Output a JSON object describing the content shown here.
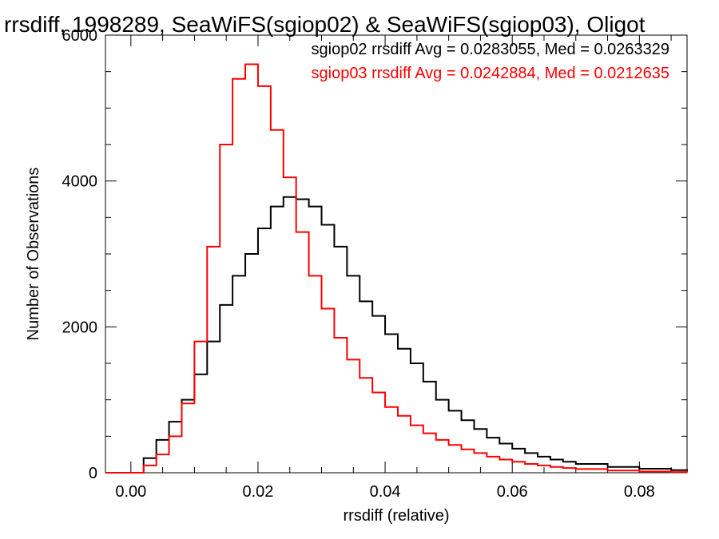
{
  "chart_data": {
    "type": "line",
    "title": "rrsdiff, 1998289, SeaWiFS(sgiop02) & SeaWiFS(sgiop03), Oligot",
    "xlabel": "rrsdiff (relative)",
    "ylabel": "Number of Observations",
    "xlim": [
      -0.004,
      0.0875
    ],
    "ylim": [
      0,
      6000
    ],
    "x_ticks": [
      0.0,
      0.02,
      0.04,
      0.06,
      0.08
    ],
    "x_tick_labels": [
      "0.00",
      "0.02",
      "0.04",
      "0.06",
      "0.08"
    ],
    "y_ticks": [
      0,
      2000,
      4000,
      6000
    ],
    "y_tick_labels": [
      "0",
      "2000",
      "4000",
      "6000"
    ],
    "grid": false,
    "legend_placement": "top-right",
    "series": [
      {
        "legend_text": "sgiop02 rrsdiff Avg = 0.0283055, Med = 0.0263329",
        "color": "#000000",
        "points": [
          [
            -0.004,
            0
          ],
          [
            0.0,
            0
          ],
          [
            0.002,
            200
          ],
          [
            0.004,
            450
          ],
          [
            0.006,
            700
          ],
          [
            0.008,
            1000
          ],
          [
            0.01,
            1350
          ],
          [
            0.012,
            1800
          ],
          [
            0.014,
            2300
          ],
          [
            0.016,
            2700
          ],
          [
            0.018,
            3000
          ],
          [
            0.02,
            3350
          ],
          [
            0.022,
            3650
          ],
          [
            0.024,
            3780
          ],
          [
            0.026,
            3750
          ],
          [
            0.028,
            3650
          ],
          [
            0.03,
            3400
          ],
          [
            0.032,
            3100
          ],
          [
            0.034,
            2700
          ],
          [
            0.036,
            2350
          ],
          [
            0.038,
            2150
          ],
          [
            0.04,
            1900
          ],
          [
            0.042,
            1700
          ],
          [
            0.044,
            1500
          ],
          [
            0.046,
            1250
          ],
          [
            0.048,
            1000
          ],
          [
            0.05,
            850
          ],
          [
            0.052,
            720
          ],
          [
            0.054,
            600
          ],
          [
            0.056,
            480
          ],
          [
            0.058,
            400
          ],
          [
            0.06,
            330
          ],
          [
            0.062,
            270
          ],
          [
            0.064,
            220
          ],
          [
            0.066,
            180
          ],
          [
            0.068,
            150
          ],
          [
            0.07,
            120
          ],
          [
            0.075,
            80
          ],
          [
            0.08,
            55
          ],
          [
            0.085,
            35
          ],
          [
            0.0875,
            25
          ]
        ]
      },
      {
        "legend_text": "sgiop03 rrsdiff Avg = 0.0242884, Med = 0.0212635",
        "color": "#ff0000",
        "points": [
          [
            -0.004,
            0
          ],
          [
            0.0,
            0
          ],
          [
            0.002,
            100
          ],
          [
            0.004,
            250
          ],
          [
            0.006,
            500
          ],
          [
            0.008,
            950
          ],
          [
            0.01,
            1800
          ],
          [
            0.012,
            3100
          ],
          [
            0.014,
            4500
          ],
          [
            0.016,
            5400
          ],
          [
            0.018,
            5600
          ],
          [
            0.02,
            5300
          ],
          [
            0.022,
            4700
          ],
          [
            0.024,
            4050
          ],
          [
            0.026,
            3300
          ],
          [
            0.028,
            2700
          ],
          [
            0.03,
            2250
          ],
          [
            0.032,
            1850
          ],
          [
            0.034,
            1550
          ],
          [
            0.036,
            1300
          ],
          [
            0.038,
            1100
          ],
          [
            0.04,
            900
          ],
          [
            0.042,
            780
          ],
          [
            0.044,
            650
          ],
          [
            0.046,
            540
          ],
          [
            0.048,
            450
          ],
          [
            0.05,
            380
          ],
          [
            0.052,
            320
          ],
          [
            0.054,
            270
          ],
          [
            0.056,
            220
          ],
          [
            0.058,
            180
          ],
          [
            0.06,
            150
          ],
          [
            0.062,
            120
          ],
          [
            0.064,
            100
          ],
          [
            0.066,
            80
          ],
          [
            0.068,
            65
          ],
          [
            0.07,
            50
          ],
          [
            0.075,
            30
          ],
          [
            0.08,
            18
          ],
          [
            0.085,
            10
          ],
          [
            0.0875,
            8
          ]
        ]
      }
    ]
  }
}
